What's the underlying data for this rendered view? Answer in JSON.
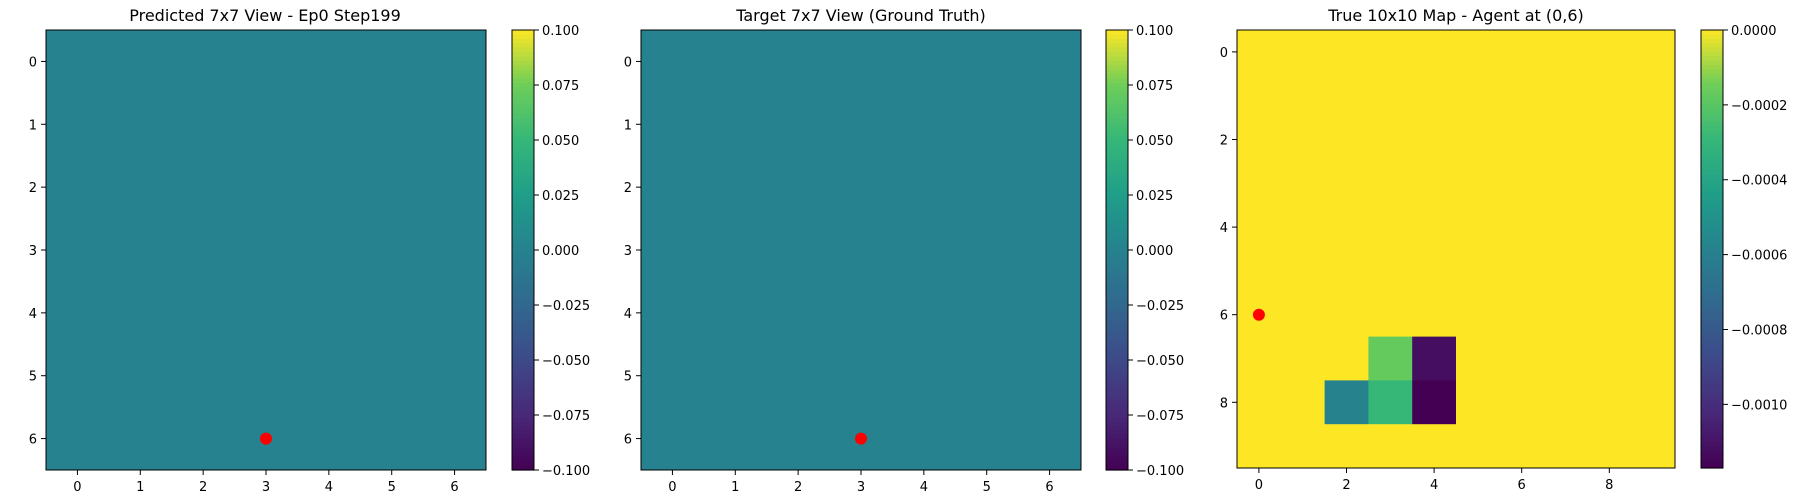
{
  "chart_data": [
    {
      "type": "heatmap",
      "title": "Predicted 7x7 View - Ep0 Step199",
      "grid": [
        [
          0,
          0,
          0,
          0,
          0,
          0,
          0
        ],
        [
          0,
          0,
          0,
          0,
          0,
          0,
          0
        ],
        [
          0,
          0,
          0,
          0,
          0,
          0,
          0
        ],
        [
          0,
          0,
          0,
          0,
          0,
          0,
          0
        ],
        [
          0,
          0,
          0,
          0,
          0,
          0,
          0
        ],
        [
          0,
          0,
          0,
          0,
          0,
          0,
          0
        ],
        [
          0,
          0,
          0,
          0,
          0,
          0,
          0
        ]
      ],
      "xticks": [
        0,
        1,
        2,
        3,
        4,
        5,
        6
      ],
      "yticks": [
        0,
        1,
        2,
        3,
        4,
        5,
        6
      ],
      "xlim": [
        -0.5,
        6.5
      ],
      "ylim": [
        6.5,
        -0.5
      ],
      "colorbar": {
        "range": [
          -0.1,
          0.1
        ],
        "ticks": [
          0.1,
          0.075,
          0.05,
          0.025,
          0.0,
          -0.025,
          -0.05,
          -0.075,
          -0.1
        ],
        "tick_labels": [
          "0.100",
          "0.075",
          "0.050",
          "0.025",
          "0.000",
          "−0.025",
          "−0.050",
          "−0.075",
          "−0.100"
        ]
      },
      "colormap": "viridis",
      "marker": {
        "x": 3,
        "y": 6,
        "color": "#ff0000"
      }
    },
    {
      "type": "heatmap",
      "title": "Target 7x7 View (Ground Truth)",
      "grid": [
        [
          0,
          0,
          0,
          0,
          0,
          0,
          0
        ],
        [
          0,
          0,
          0,
          0,
          0,
          0,
          0
        ],
        [
          0,
          0,
          0,
          0,
          0,
          0,
          0
        ],
        [
          0,
          0,
          0,
          0,
          0,
          0,
          0
        ],
        [
          0,
          0,
          0,
          0,
          0,
          0,
          0
        ],
        [
          0,
          0,
          0,
          0,
          0,
          0,
          0
        ],
        [
          0,
          0,
          0,
          0,
          0,
          0,
          0
        ]
      ],
      "xticks": [
        0,
        1,
        2,
        3,
        4,
        5,
        6
      ],
      "yticks": [
        0,
        1,
        2,
        3,
        4,
        5,
        6
      ],
      "xlim": [
        -0.5,
        6.5
      ],
      "ylim": [
        6.5,
        -0.5
      ],
      "colorbar": {
        "range": [
          -0.1,
          0.1
        ],
        "ticks": [
          0.1,
          0.075,
          0.05,
          0.025,
          0.0,
          -0.025,
          -0.05,
          -0.075,
          -0.1
        ],
        "tick_labels": [
          "0.100",
          "0.075",
          "0.050",
          "0.025",
          "0.000",
          "−0.025",
          "−0.050",
          "−0.075",
          "−0.100"
        ]
      },
      "colormap": "viridis",
      "marker": {
        "x": 3,
        "y": 6,
        "color": "#ff0000"
      }
    },
    {
      "type": "heatmap",
      "title": "True 10x10 Map - Agent at (0,6)",
      "grid": [
        [
          0,
          0,
          0,
          0,
          0,
          0,
          0,
          0,
          0,
          0
        ],
        [
          0,
          0,
          0,
          0,
          0,
          0,
          0,
          0,
          0,
          0
        ],
        [
          0,
          0,
          0,
          0,
          0,
          0,
          0,
          0,
          0,
          0
        ],
        [
          0,
          0,
          0,
          0,
          0,
          0,
          0,
          0,
          0,
          0
        ],
        [
          0,
          0,
          0,
          0,
          0,
          0,
          0,
          0,
          0,
          0
        ],
        [
          0,
          0,
          0,
          0,
          0,
          0,
          0,
          0,
          0,
          0
        ],
        [
          0,
          0,
          0,
          0,
          0,
          0,
          0,
          0,
          0,
          0
        ],
        [
          0,
          0,
          0,
          -0.00017,
          -0.00112,
          0,
          0,
          0,
          0,
          0
        ],
        [
          0,
          0,
          -0.00058,
          -0.00029,
          -0.00117,
          0,
          0,
          0,
          0,
          0
        ],
        [
          0,
          0,
          0,
          0,
          0,
          0,
          0,
          0,
          0,
          0
        ]
      ],
      "xticks": [
        0,
        2,
        4,
        6,
        8
      ],
      "yticks": [
        0,
        2,
        4,
        6,
        8
      ],
      "xlim": [
        -0.5,
        9.5
      ],
      "ylim": [
        9.5,
        -0.5
      ],
      "colorbar": {
        "range": [
          -0.00117,
          0.0
        ],
        "ticks": [
          0.0,
          -0.0002,
          -0.0004,
          -0.0006,
          -0.0008,
          -0.001
        ],
        "tick_labels": [
          "0.0000",
          "−0.0002",
          "−0.0004",
          "−0.0006",
          "−0.0008",
          "−0.0010"
        ]
      },
      "colormap": "viridis",
      "marker": {
        "x": 0,
        "y": 6,
        "color": "#ff0000"
      }
    }
  ]
}
